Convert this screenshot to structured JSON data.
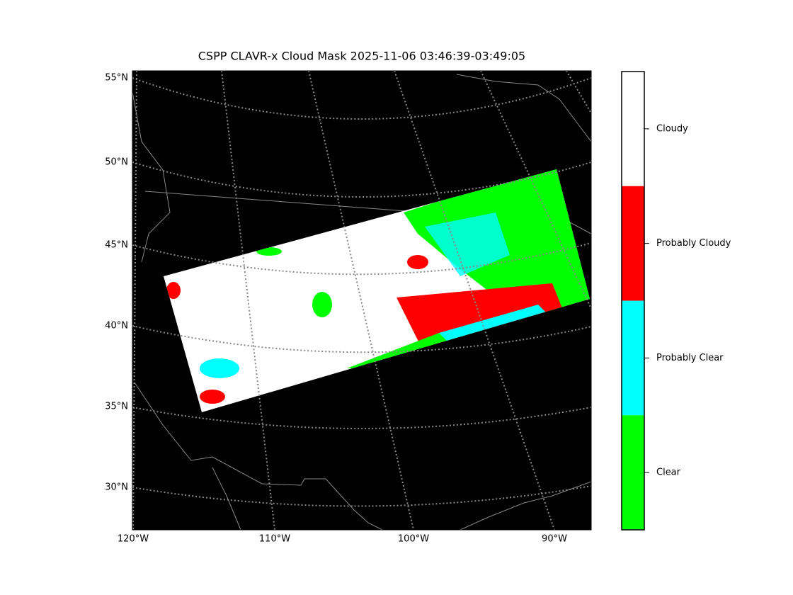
{
  "title": "CSPP CLAVR-x Cloud Mask 2025-11-06 03:46:39-03:49:05",
  "map": {
    "lat_labels": [
      "55°N",
      "50°N",
      "45°N",
      "40°N",
      "35°N",
      "30°N"
    ],
    "lon_labels": [
      "120°W",
      "110°W",
      "100°W",
      "90°W"
    ]
  },
  "colorbar": {
    "classes": [
      {
        "label": "Cloudy",
        "color": "#ffffff"
      },
      {
        "label": "Probably Cloudy",
        "color": "#ff0000"
      },
      {
        "label": "Probably Clear",
        "color": "#00ffff"
      },
      {
        "label": "Clear",
        "color": "#00ff00"
      }
    ]
  }
}
